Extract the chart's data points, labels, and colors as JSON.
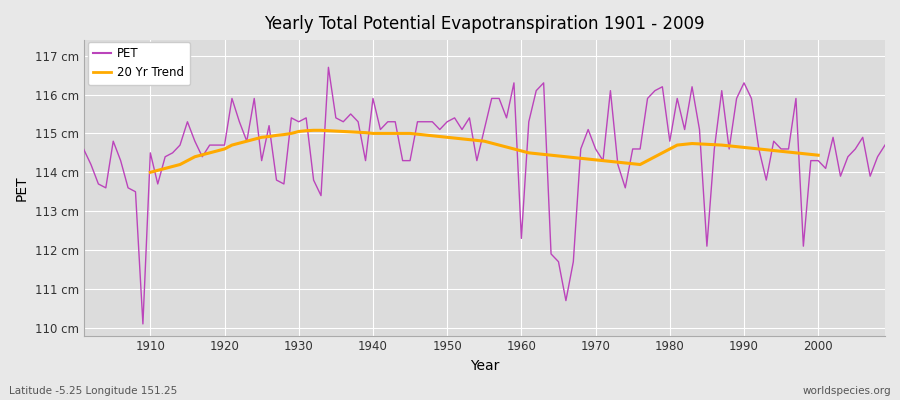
{
  "title": "Yearly Total Potential Evapotranspiration 1901 - 2009",
  "xlabel": "Year",
  "ylabel": "PET",
  "footnote_left": "Latitude -5.25 Longitude 151.25",
  "footnote_right": "worldspecies.org",
  "pet_color": "#bb44bb",
  "trend_color": "#ffaa00",
  "bg_color": "#e8e8e8",
  "plot_bg_color": "#dcdcdc",
  "grid_color": "#ffffff",
  "ylim": [
    109.8,
    117.4
  ],
  "yticks": [
    110,
    111,
    112,
    113,
    114,
    115,
    116,
    117
  ],
  "ytick_labels": [
    "110 cm",
    "111 cm",
    "112 cm",
    "113 cm",
    "114 cm",
    "115 cm",
    "116 cm",
    "117 cm"
  ],
  "years": [
    1901,
    1902,
    1903,
    1904,
    1905,
    1906,
    1907,
    1908,
    1909,
    1910,
    1911,
    1912,
    1913,
    1914,
    1915,
    1916,
    1917,
    1918,
    1919,
    1920,
    1921,
    1922,
    1923,
    1924,
    1925,
    1926,
    1927,
    1928,
    1929,
    1930,
    1931,
    1932,
    1933,
    1934,
    1935,
    1936,
    1937,
    1938,
    1939,
    1940,
    1941,
    1942,
    1943,
    1944,
    1945,
    1946,
    1947,
    1948,
    1949,
    1950,
    1951,
    1952,
    1953,
    1954,
    1955,
    1956,
    1957,
    1958,
    1959,
    1960,
    1961,
    1962,
    1963,
    1964,
    1965,
    1966,
    1967,
    1968,
    1969,
    1970,
    1971,
    1972,
    1973,
    1974,
    1975,
    1976,
    1977,
    1978,
    1979,
    1980,
    1981,
    1982,
    1983,
    1984,
    1985,
    1986,
    1987,
    1988,
    1989,
    1990,
    1991,
    1992,
    1993,
    1994,
    1995,
    1996,
    1997,
    1998,
    1999,
    2000,
    2001,
    2002,
    2003,
    2004,
    2005,
    2006,
    2007,
    2008,
    2009
  ],
  "pet_values": [
    114.6,
    114.2,
    113.7,
    113.6,
    114.8,
    114.3,
    113.6,
    113.5,
    110.1,
    114.5,
    113.7,
    114.4,
    114.5,
    114.7,
    115.3,
    114.8,
    114.4,
    114.7,
    114.7,
    114.7,
    115.9,
    115.3,
    114.8,
    115.9,
    114.3,
    115.2,
    113.8,
    113.7,
    115.4,
    115.3,
    115.4,
    113.8,
    113.4,
    116.7,
    115.4,
    115.3,
    115.5,
    115.3,
    114.3,
    115.9,
    115.1,
    115.3,
    115.3,
    114.3,
    114.3,
    115.3,
    115.3,
    115.3,
    115.1,
    115.3,
    115.4,
    115.1,
    115.4,
    114.3,
    115.1,
    115.9,
    115.9,
    115.4,
    116.3,
    112.3,
    115.3,
    116.1,
    116.3,
    111.9,
    111.7,
    110.7,
    111.7,
    114.6,
    115.1,
    114.6,
    114.3,
    116.1,
    114.2,
    113.6,
    114.6,
    114.6,
    115.9,
    116.1,
    116.2,
    114.8,
    115.9,
    115.1,
    116.2,
    115.1,
    112.1,
    114.6,
    116.1,
    114.6,
    115.9,
    116.3,
    115.9,
    114.6,
    113.8,
    114.8,
    114.6,
    114.6,
    115.9,
    112.1,
    114.3,
    114.3,
    114.1,
    114.9,
    113.9,
    114.4,
    114.6,
    114.9,
    113.9,
    114.4,
    114.7
  ],
  "trend_values_by_year": {
    "1910": 114.0,
    "1911": 114.05,
    "1912": 114.1,
    "1913": 114.15,
    "1914": 114.2,
    "1915": 114.3,
    "1916": 114.4,
    "1917": 114.45,
    "1918": 114.5,
    "1919": 114.55,
    "1920": 114.6,
    "1921": 114.7,
    "1922": 114.75,
    "1923": 114.8,
    "1924": 114.85,
    "1925": 114.9,
    "1926": 114.92,
    "1927": 114.95,
    "1928": 114.97,
    "1929": 115.0,
    "1930": 115.05,
    "1931": 115.07,
    "1932": 115.08,
    "1933": 115.08,
    "1934": 115.07,
    "1935": 115.06,
    "1936": 115.05,
    "1937": 115.04,
    "1938": 115.03,
    "1939": 115.02,
    "1940": 115.0,
    "1941": 115.0,
    "1942": 115.0,
    "1943": 115.0,
    "1944": 115.0,
    "1945": 115.0,
    "1946": 114.98,
    "1947": 114.96,
    "1948": 114.94,
    "1949": 114.92,
    "1950": 114.9,
    "1951": 114.88,
    "1952": 114.86,
    "1953": 114.84,
    "1954": 114.82,
    "1955": 114.8,
    "1956": 114.75,
    "1957": 114.7,
    "1958": 114.65,
    "1959": 114.6,
    "1960": 114.55,
    "1961": 114.5,
    "1962": 114.48,
    "1963": 114.46,
    "1964": 114.44,
    "1965": 114.42,
    "1966": 114.4,
    "1967": 114.38,
    "1968": 114.36,
    "1969": 114.34,
    "1970": 114.32,
    "1971": 114.3,
    "1972": 114.28,
    "1973": 114.26,
    "1974": 114.24,
    "1975": 114.22,
    "1976": 114.2,
    "1977": 114.3,
    "1978": 114.4,
    "1979": 114.5,
    "1980": 114.6,
    "1981": 114.7,
    "1982": 114.72,
    "1983": 114.74,
    "1984": 114.73,
    "1985": 114.72,
    "1986": 114.71,
    "1987": 114.7,
    "1988": 114.68,
    "1989": 114.66,
    "1990": 114.64,
    "1991": 114.62,
    "1992": 114.6,
    "1993": 114.58,
    "1994": 114.56,
    "1995": 114.54,
    "1996": 114.52,
    "1997": 114.5,
    "1998": 114.48,
    "1999": 114.46,
    "2000": 114.44
  }
}
